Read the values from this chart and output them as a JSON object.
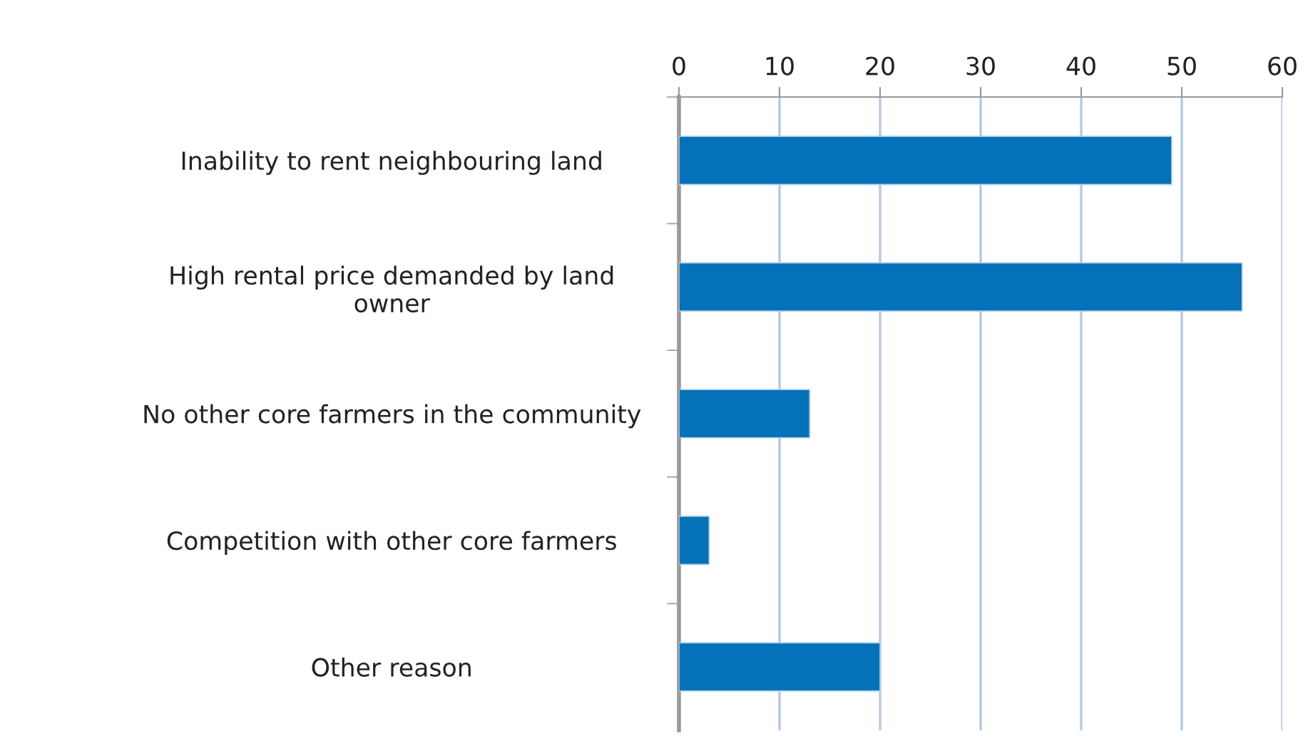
{
  "chart_data": {
    "type": "bar",
    "orientation": "horizontal",
    "categories": [
      "Inability to rent neighbouring land",
      "High rental price demanded by land\nowner",
      "No other core farmers in the community",
      "Competition with other core farmers",
      "Other reason"
    ],
    "values": [
      49,
      56,
      13,
      3,
      20
    ],
    "color": "#0571b8",
    "xlim": [
      0,
      60
    ],
    "xticks": [
      0,
      10,
      20,
      30,
      40,
      50,
      60
    ],
    "grid": "x",
    "legend": false
  }
}
